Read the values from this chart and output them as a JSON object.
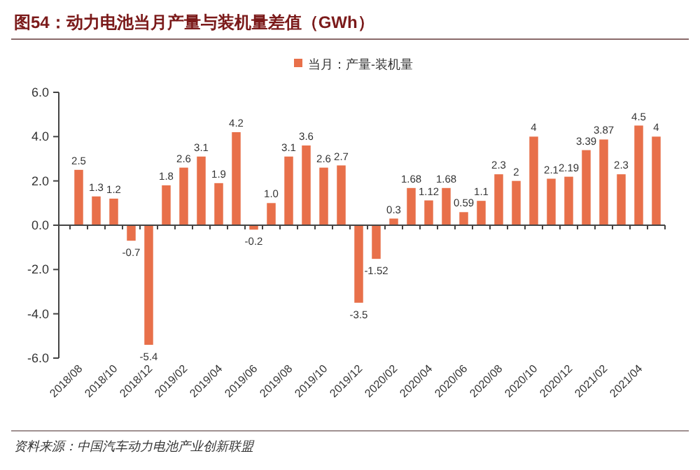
{
  "chart_data": {
    "type": "bar",
    "title": "图54：动力电池当月产量与装机量差值（GWh）",
    "categories": [
      "2018/08",
      null,
      "2018/10",
      null,
      "2018/12",
      null,
      "2019/02",
      null,
      "2019/04",
      null,
      "2019/06",
      null,
      "2019/08",
      null,
      "2019/10",
      null,
      "2019/12",
      null,
      "2020/02",
      null,
      "2020/04",
      null,
      "2020/06",
      null,
      "2020/08",
      null,
      "2020/10",
      null,
      "2020/12",
      null,
      "2021/02",
      null,
      "2021/04",
      null
    ],
    "series": [
      {
        "name": "当月：产量-装机量",
        "color": "#e8704a",
        "values": [
          2.5,
          1.3,
          1.2,
          -0.7,
          -5.4,
          1.8,
          2.6,
          3.1,
          1.9,
          4.2,
          -0.2,
          1.0,
          3.1,
          3.6,
          2.6,
          2.7,
          -3.5,
          -1.52,
          0.3,
          1.68,
          1.12,
          1.68,
          0.59,
          1.1,
          2.3,
          2,
          4,
          2.1,
          2.19,
          3.39,
          3.87,
          2.3,
          4.5,
          4
        ],
        "value_labels": [
          "2.5",
          "1.3",
          "1.2",
          "-0.7",
          "-5.4",
          "1.8",
          "2.6",
          "3.1",
          "1.9",
          "4.2",
          "-0.2",
          "1.0",
          "3.1",
          "3.6",
          "2.6",
          "2.7",
          "-3.5",
          "-1.52",
          "0.3",
          "1.68",
          "1.12",
          "1.68",
          "0.59",
          "1.1",
          "2.3",
          "2",
          "4",
          "2.1",
          "2.19",
          "3.39",
          "3.87",
          "2.3",
          "4.5",
          "4"
        ]
      }
    ],
    "ylim": [
      -6,
      6
    ],
    "yticks": [
      {
        "value": -6,
        "label": "-6.0"
      },
      {
        "value": -4,
        "label": "-4.0"
      },
      {
        "value": -2,
        "label": "-2.0"
      },
      {
        "value": 0,
        "label": "0.0"
      },
      {
        "value": 2,
        "label": "2.0"
      },
      {
        "value": 4,
        "label": "4.0"
      },
      {
        "value": 6,
        "label": "6.0"
      }
    ],
    "legend": "top",
    "annotations": [
      "资料来源：中国汽车动力电池产业创新联盟"
    ]
  }
}
